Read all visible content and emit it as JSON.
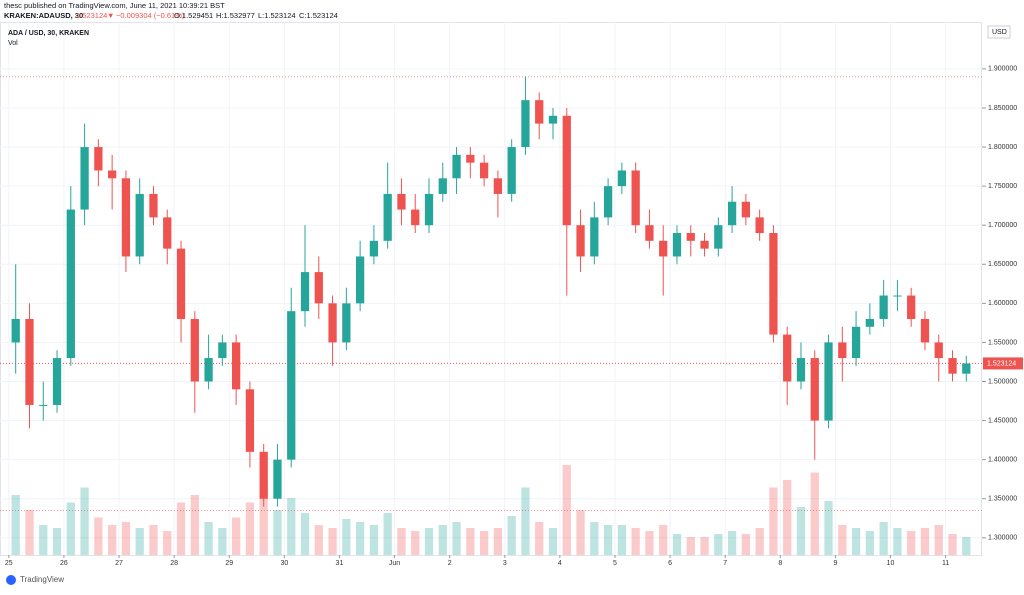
{
  "header": {
    "published": "thesc published on TradingView.com, June 11, 2021 10:39:21 BST",
    "symbol": "KRAKEN:ADAUSD, 30",
    "last": "1.523124",
    "arrow": "▼",
    "change": "−0.009304 (−0.61%)",
    "open": "O:1.529451",
    "high": "H:1.532977",
    "low": "L:1.523124",
    "close": "C:1.523124"
  },
  "chart_data": {
    "type": "candlestick",
    "title": "ADA / USD, 30, KRAKEN",
    "volume_label": "Vol",
    "currency": "USD",
    "brand": "TradingView",
    "x": [
      0,
      0.25,
      0.5,
      0.75,
      1,
      1.25,
      1.5,
      1.75,
      2,
      2.25,
      2.5,
      2.75,
      3,
      3.25,
      3.5,
      3.75,
      4,
      4.25,
      4.5,
      4.75,
      5,
      5.25,
      5.5,
      5.75,
      6,
      6.25,
      6.5,
      6.75,
      7,
      7.25,
      7.5,
      7.75,
      8,
      8.25,
      8.5,
      8.75,
      9,
      9.25,
      9.5,
      9.75,
      10,
      10.25,
      10.5,
      10.75,
      11,
      11.25,
      11.5,
      11.75,
      12,
      12.25,
      12.5,
      12.75,
      13,
      13.25,
      13.5,
      13.75,
      14,
      14.25,
      14.5,
      14.75,
      15,
      15.25,
      15.5,
      15.75,
      16,
      16.25,
      16.5,
      16.75,
      17,
      17.25
    ],
    "open": [
      1.55,
      1.58,
      1.47,
      1.47,
      1.53,
      1.72,
      1.8,
      1.77,
      1.76,
      1.66,
      1.74,
      1.71,
      1.67,
      1.58,
      1.5,
      1.53,
      1.55,
      1.49,
      1.41,
      1.35,
      1.4,
      1.59,
      1.64,
      1.6,
      1.55,
      1.6,
      1.66,
      1.68,
      1.74,
      1.72,
      1.7,
      1.74,
      1.76,
      1.79,
      1.78,
      1.76,
      1.74,
      1.8,
      1.86,
      1.83,
      1.84,
      1.7,
      1.66,
      1.71,
      1.75,
      1.77,
      1.7,
      1.68,
      1.66,
      1.69,
      1.68,
      1.67,
      1.7,
      1.73,
      1.71,
      1.69,
      1.56,
      1.5,
      1.53,
      1.45,
      1.55,
      1.53,
      1.57,
      1.58,
      1.61,
      1.61,
      1.58,
      1.55,
      1.53,
      1.51
    ],
    "high": [
      1.65,
      1.6,
      1.5,
      1.54,
      1.75,
      1.83,
      1.81,
      1.79,
      1.77,
      1.76,
      1.75,
      1.72,
      1.68,
      1.59,
      1.56,
      1.56,
      1.56,
      1.5,
      1.42,
      1.42,
      1.62,
      1.7,
      1.66,
      1.61,
      1.62,
      1.68,
      1.7,
      1.78,
      1.76,
      1.74,
      1.76,
      1.78,
      1.8,
      1.8,
      1.79,
      1.77,
      1.81,
      1.89,
      1.87,
      1.85,
      1.85,
      1.72,
      1.73,
      1.76,
      1.78,
      1.78,
      1.72,
      1.7,
      1.7,
      1.7,
      1.69,
      1.71,
      1.75,
      1.74,
      1.72,
      1.7,
      1.57,
      1.55,
      1.54,
      1.56,
      1.57,
      1.59,
      1.6,
      1.63,
      1.63,
      1.62,
      1.59,
      1.56,
      1.54,
      1.533
    ],
    "low": [
      1.51,
      1.44,
      1.45,
      1.46,
      1.52,
      1.7,
      1.75,
      1.72,
      1.64,
      1.65,
      1.7,
      1.65,
      1.55,
      1.46,
      1.49,
      1.52,
      1.47,
      1.39,
      1.34,
      1.34,
      1.39,
      1.57,
      1.58,
      1.52,
      1.54,
      1.59,
      1.65,
      1.67,
      1.7,
      1.69,
      1.69,
      1.73,
      1.74,
      1.76,
      1.75,
      1.71,
      1.73,
      1.79,
      1.81,
      1.81,
      1.61,
      1.64,
      1.65,
      1.7,
      1.74,
      1.69,
      1.67,
      1.61,
      1.65,
      1.66,
      1.66,
      1.66,
      1.69,
      1.7,
      1.68,
      1.55,
      1.47,
      1.49,
      1.4,
      1.44,
      1.5,
      1.52,
      1.56,
      1.57,
      1.59,
      1.57,
      1.54,
      1.5,
      1.5,
      1.5
    ],
    "close": [
      1.58,
      1.47,
      1.47,
      1.53,
      1.72,
      1.8,
      1.77,
      1.76,
      1.66,
      1.74,
      1.71,
      1.67,
      1.58,
      1.5,
      1.53,
      1.55,
      1.49,
      1.41,
      1.35,
      1.4,
      1.59,
      1.64,
      1.6,
      1.55,
      1.6,
      1.66,
      1.68,
      1.74,
      1.72,
      1.7,
      1.74,
      1.76,
      1.79,
      1.78,
      1.76,
      1.74,
      1.8,
      1.86,
      1.83,
      1.84,
      1.7,
      1.66,
      1.71,
      1.75,
      1.77,
      1.7,
      1.68,
      1.66,
      1.69,
      1.68,
      1.67,
      1.7,
      1.73,
      1.71,
      1.69,
      1.56,
      1.5,
      1.53,
      1.45,
      1.55,
      1.53,
      1.57,
      1.58,
      1.61,
      1.61,
      1.58,
      1.55,
      1.53,
      1.51,
      1.523124
    ],
    "volume": [
      40,
      30,
      20,
      18,
      35,
      45,
      25,
      20,
      22,
      18,
      20,
      16,
      35,
      40,
      22,
      18,
      25,
      35,
      50,
      30,
      38,
      28,
      20,
      18,
      24,
      22,
      20,
      28,
      18,
      16,
      18,
      20,
      22,
      18,
      16,
      18,
      26,
      45,
      22,
      18,
      60,
      30,
      22,
      20,
      20,
      18,
      16,
      20,
      14,
      12,
      12,
      14,
      16,
      14,
      18,
      45,
      50,
      32,
      55,
      36,
      20,
      18,
      16,
      22,
      18,
      16,
      18,
      20,
      14,
      12
    ],
    "volume_lim": [
      0,
      100
    ],
    "up_color": "#26a69a",
    "down_color": "#ef5350",
    "xlim": [
      -0.16,
      17.66
    ],
    "ylim": [
      1.278,
      1.96
    ],
    "xticks": [
      {
        "value": 0,
        "label": "25"
      },
      {
        "value": 1,
        "label": "26"
      },
      {
        "value": 2,
        "label": "27"
      },
      {
        "value": 3,
        "label": "28"
      },
      {
        "value": 4,
        "label": "29"
      },
      {
        "value": 5,
        "label": "30"
      },
      {
        "value": 6,
        "label": "31"
      },
      {
        "value": 7,
        "label": "Jun"
      },
      {
        "value": 8,
        "label": "2"
      },
      {
        "value": 9,
        "label": "3"
      },
      {
        "value": 10,
        "label": "4"
      },
      {
        "value": 11,
        "label": "5"
      },
      {
        "value": 12,
        "label": "6"
      },
      {
        "value": 13,
        "label": "7"
      },
      {
        "value": 14,
        "label": "8"
      },
      {
        "value": 15,
        "label": "9"
      },
      {
        "value": 16,
        "label": "10"
      },
      {
        "value": 17,
        "label": "11"
      }
    ],
    "yticks": [
      {
        "value": 1.3,
        "label": "1.300000"
      },
      {
        "value": 1.35,
        "label": "1.350000"
      },
      {
        "value": 1.4,
        "label": "1.400000"
      },
      {
        "value": 1.45,
        "label": "1.450000"
      },
      {
        "value": 1.5,
        "label": "1.500000"
      },
      {
        "value": 1.55,
        "label": "1.550000"
      },
      {
        "value": 1.6,
        "label": "1.600000"
      },
      {
        "value": 1.65,
        "label": "1.650000"
      },
      {
        "value": 1.7,
        "label": "1.700000"
      },
      {
        "value": 1.75,
        "label": "1.750000"
      },
      {
        "value": 1.8,
        "label": "1.800000"
      },
      {
        "value": 1.85,
        "label": "1.850000"
      },
      {
        "value": 1.9,
        "label": "1.900000"
      }
    ],
    "current_price": 1.523124,
    "high_line": 1.89,
    "low_line": 1.335,
    "grid": true
  }
}
